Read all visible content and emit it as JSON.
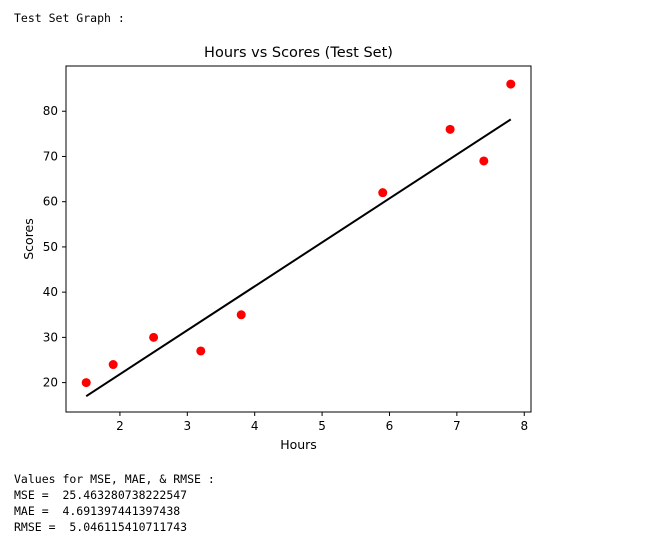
{
  "header": {
    "text": "Test Set Graph :"
  },
  "chart_data": {
    "type": "scatter",
    "title": "Hours vs Scores (Test Set)",
    "xlabel": "Hours",
    "ylabel": "Scores",
    "xlim": [
      1.2,
      8.1
    ],
    "ylim": [
      13.5,
      90
    ],
    "xticks": [
      2,
      3,
      4,
      5,
      6,
      7,
      8
    ],
    "yticks": [
      20,
      30,
      40,
      50,
      60,
      70,
      80
    ],
    "grid": false,
    "points": [
      {
        "x": 1.5,
        "y": 20
      },
      {
        "x": 1.9,
        "y": 24
      },
      {
        "x": 2.5,
        "y": 30
      },
      {
        "x": 3.2,
        "y": 27
      },
      {
        "x": 3.8,
        "y": 35
      },
      {
        "x": 5.9,
        "y": 62
      },
      {
        "x": 6.9,
        "y": 76
      },
      {
        "x": 7.4,
        "y": 69
      },
      {
        "x": 7.8,
        "y": 86
      }
    ],
    "point_color": "#ff0000",
    "regression_line": {
      "x": [
        1.5,
        7.8
      ],
      "y": [
        17.0,
        78.2
      ],
      "color": "#000000"
    }
  },
  "metrics": {
    "heading": "Values for MSE, MAE, & RMSE :",
    "mse": "MSE =  25.463280738222547",
    "mae": "MAE =  4.691397441397438",
    "rmse": "RMSE =  5.046115410711743"
  }
}
